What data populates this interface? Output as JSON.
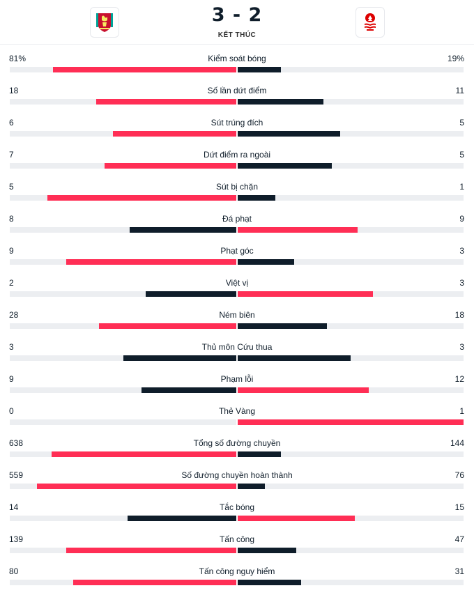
{
  "match": {
    "score": "3 - 2",
    "status": "KẾT THÚC",
    "home_logo": "liverpool-crest-icon",
    "away_logo": "nottingham-forest-crest-icon"
  },
  "colors": {
    "higher": "#ff2e55",
    "lower": "#0f1d2a",
    "track": "#eceef1"
  },
  "stats": [
    {
      "label": "Kiểm soát bóng",
      "home": "81%",
      "away": "19%",
      "home_val": 81,
      "away_val": 19,
      "home_frac": 0.81,
      "away_frac": 0.19
    },
    {
      "label": "Số lần dứt điểm",
      "home": "18",
      "away": "11",
      "home_val": 18,
      "away_val": 11,
      "home_frac": 0.62,
      "away_frac": 0.38
    },
    {
      "label": "Sút trúng đích",
      "home": "6",
      "away": "5",
      "home_val": 6,
      "away_val": 5,
      "home_frac": 0.545,
      "away_frac": 0.455
    },
    {
      "label": "Dứt điểm ra ngoài",
      "home": "7",
      "away": "5",
      "home_val": 7,
      "away_val": 5,
      "home_frac": 0.583,
      "away_frac": 0.417
    },
    {
      "label": "Sút bị chặn",
      "home": "5",
      "away": "1",
      "home_val": 5,
      "away_val": 1,
      "home_frac": 0.833,
      "away_frac": 0.167
    },
    {
      "label": "Đá phạt",
      "home": "8",
      "away": "9",
      "home_val": 8,
      "away_val": 9,
      "home_frac": 0.47,
      "away_frac": 0.53
    },
    {
      "label": "Phạt góc",
      "home": "9",
      "away": "3",
      "home_val": 9,
      "away_val": 3,
      "home_frac": 0.75,
      "away_frac": 0.25
    },
    {
      "label": "Việt vị",
      "home": "2",
      "away": "3",
      "home_val": 2,
      "away_val": 3,
      "home_frac": 0.4,
      "away_frac": 0.6
    },
    {
      "label": "Ném biên",
      "home": "28",
      "away": "18",
      "home_val": 28,
      "away_val": 18,
      "home_frac": 0.605,
      "away_frac": 0.395
    },
    {
      "label": "Thủ môn Cứu thua",
      "home": "3",
      "away": "3",
      "home_val": 3,
      "away_val": 3,
      "home_frac": 0.5,
      "away_frac": 0.5
    },
    {
      "label": "Phạm lỗi",
      "home": "9",
      "away": "12",
      "home_val": 9,
      "away_val": 12,
      "home_frac": 0.42,
      "away_frac": 0.58
    },
    {
      "label": "Thẻ Vàng",
      "home": "0",
      "away": "1",
      "home_val": 0,
      "away_val": 1,
      "home_frac": 0.0,
      "away_frac": 1.0
    },
    {
      "label": "Tổng số đường chuyền",
      "home": "638",
      "away": "144",
      "home_val": 638,
      "away_val": 144,
      "home_frac": 0.815,
      "away_frac": 0.19
    },
    {
      "label": "Số đường chuyền hoàn thành",
      "home": "559",
      "away": "76",
      "home_val": 559,
      "away_val": 76,
      "home_frac": 0.88,
      "away_frac": 0.12
    },
    {
      "label": "Tắc bóng",
      "home": "14",
      "away": "15",
      "home_val": 14,
      "away_val": 15,
      "home_frac": 0.48,
      "away_frac": 0.52
    },
    {
      "label": "Tấn công",
      "home": "139",
      "away": "47",
      "home_val": 139,
      "away_val": 47,
      "home_frac": 0.75,
      "away_frac": 0.26
    },
    {
      "label": "Tấn công nguy hiểm",
      "home": "80",
      "away": "31",
      "home_val": 80,
      "away_val": 31,
      "home_frac": 0.72,
      "away_frac": 0.28
    }
  ]
}
